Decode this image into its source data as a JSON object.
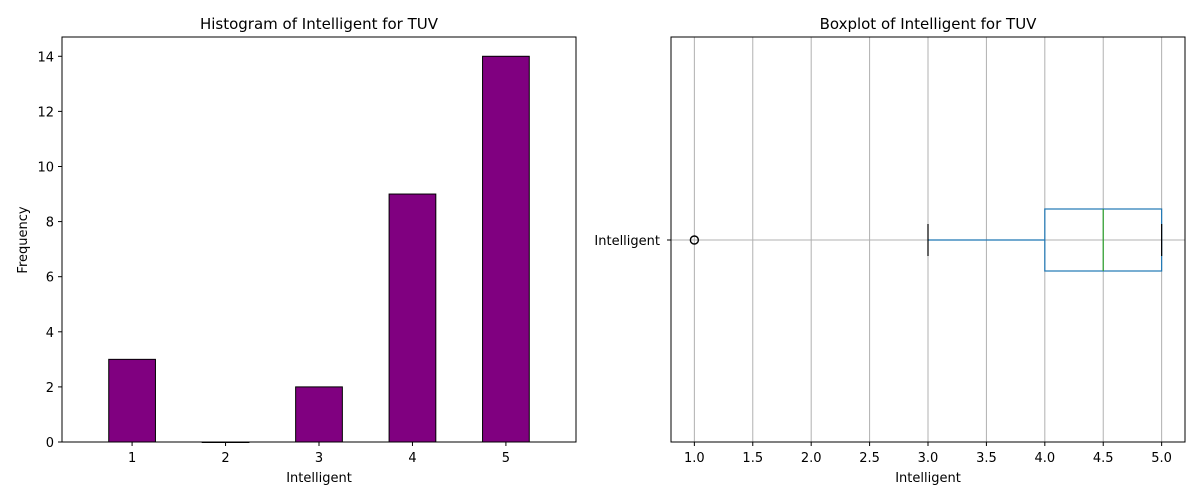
{
  "chart_data": [
    {
      "type": "bar",
      "title": "Histogram of Intelligent for TUV",
      "xlabel": "Intelligent",
      "ylabel": "Frequency",
      "categories": [
        "1",
        "2",
        "3",
        "4",
        "5"
      ],
      "values": [
        3,
        0,
        2,
        9,
        14
      ],
      "ylim": [
        0,
        14.7
      ],
      "yticks": [
        "0",
        "2",
        "4",
        "6",
        "8",
        "10",
        "12",
        "14"
      ],
      "bar_color": "#800080",
      "edge_color": "#000000",
      "grid": false
    },
    {
      "type": "boxplot",
      "title": "Boxplot of Intelligent for TUV",
      "xlabel": "Intelligent",
      "category": "Intelligent",
      "orientation": "horizontal",
      "whisker_low": 3.0,
      "q1": 4.0,
      "median": 4.5,
      "q3": 5.0,
      "whisker_high": 5.0,
      "outliers": [
        1.0
      ],
      "xlim": [
        0.8,
        5.2
      ],
      "xticks": [
        "1.0",
        "1.5",
        "2.0",
        "2.5",
        "3.0",
        "3.5",
        "4.0",
        "4.5",
        "5.0"
      ],
      "box_color": "#1f77b4",
      "median_color": "#2ca02c",
      "grid": true
    }
  ]
}
